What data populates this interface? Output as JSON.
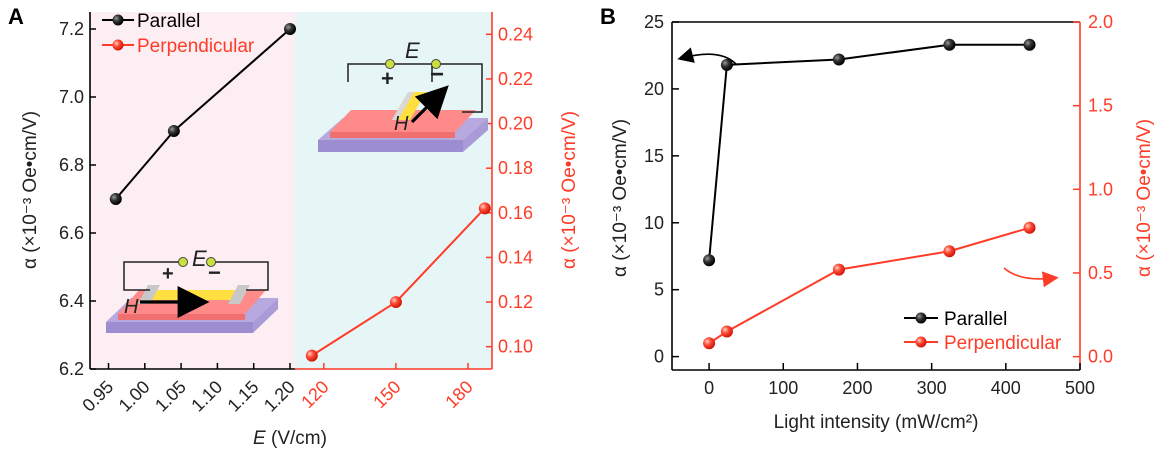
{
  "chart_data": [
    {
      "panel": "A",
      "type": "line",
      "series": [
        {
          "name": "Parallel",
          "color": "#000000",
          "axis": "left",
          "x": [
            0.96,
            1.04,
            1.2
          ],
          "y": [
            6.7,
            6.9,
            7.2
          ]
        },
        {
          "name": "Perpendicular",
          "color": "#ff3c28",
          "axis": "right",
          "x": [
            115,
            150,
            187
          ],
          "y": [
            0.096,
            0.12,
            0.162
          ]
        }
      ],
      "xlabel_italic": "E",
      "xlabel_unit": " (V/cm)",
      "ylabel_left": "α (×10⁻³ Oe•cm/V)",
      "ylabel_right": "α (×10⁻³ Oe•cm/V)",
      "x_bottom_black": {
        "range": [
          0.93,
          1.2
        ],
        "ticks": [
          "0.95",
          "1.00",
          "1.05",
          "1.10",
          "1.15",
          "1.20"
        ],
        "tick_values": [
          0.95,
          1.0,
          1.05,
          1.1,
          1.15,
          1.2
        ]
      },
      "x_bottom_red": {
        "range": [
          108,
          190
        ],
        "ticks": [
          "120",
          "150",
          "180"
        ],
        "tick_values": [
          120,
          150,
          180
        ]
      },
      "ylim_left": [
        6.2,
        7.25
      ],
      "yticks_left": [
        "6.2",
        "6.4",
        "6.6",
        "6.8",
        "7.0",
        "7.2"
      ],
      "ytick_values_left": [
        6.2,
        6.4,
        6.6,
        6.8,
        7.0,
        7.2
      ],
      "ylim_right": [
        0.09,
        0.25
      ],
      "yticks_right": [
        "0.10",
        "0.12",
        "0.14",
        "0.16",
        "0.18",
        "0.20",
        "0.22",
        "0.24"
      ],
      "ytick_values_right": [
        0.1,
        0.12,
        0.14,
        0.16,
        0.18,
        0.2,
        0.22,
        0.24
      ],
      "legend": [
        "Parallel",
        "Perpendicular"
      ],
      "legend_position": "top-left",
      "inset_labels": {
        "field_e": "E",
        "field_h": "H",
        "plus": "+",
        "minus": "−"
      },
      "background_left": "#fdeef4",
      "background_right": "#e6f5f5"
    },
    {
      "panel": "B",
      "type": "line",
      "series": [
        {
          "name": "Parallel",
          "color": "#000000",
          "axis": "left",
          "x": [
            0,
            24,
            175,
            324,
            432
          ],
          "y": [
            7.2,
            21.8,
            22.2,
            23.3,
            23.3
          ]
        },
        {
          "name": "Perpendicular",
          "color": "#ff3c28",
          "axis": "right",
          "x": [
            0,
            24,
            175,
            324,
            432
          ],
          "y": [
            0.08,
            0.15,
            0.52,
            0.63,
            0.77
          ]
        }
      ],
      "xlabel": "Light intensity (mW/cm²)",
      "ylabel_left": "α (×10⁻³ Oe•cm/V)",
      "ylabel_right": "α (×10⁻³ Oe•cm/V)",
      "xlim": [
        -50,
        500
      ],
      "xticks": [
        "0",
        "100",
        "200",
        "300",
        "400",
        "500"
      ],
      "xtick_values": [
        0,
        100,
        200,
        300,
        400,
        500
      ],
      "ylim_left": [
        -1,
        25
      ],
      "yticks_left": [
        "0",
        "5",
        "10",
        "15",
        "20",
        "25"
      ],
      "ytick_values_left": [
        0,
        5,
        10,
        15,
        20,
        25
      ],
      "ylim_right": [
        -0.08,
        2.0
      ],
      "yticks_right": [
        "0.0",
        "0.5",
        "1.0",
        "1.5",
        "2.0"
      ],
      "ytick_values_right": [
        0,
        0.5,
        1.0,
        1.5,
        2.0
      ],
      "legend": [
        "Parallel",
        "Perpendicular"
      ],
      "legend_position": "bottom-right"
    }
  ]
}
